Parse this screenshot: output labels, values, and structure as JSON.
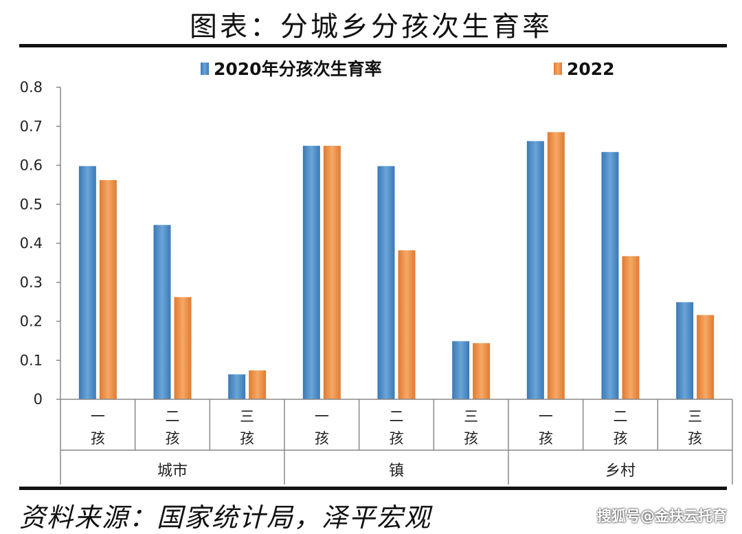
{
  "title": "图表：分城乡分孩次生育率",
  "source": "资料来源：国家统计局，泽平宏观",
  "watermark": "搜狐号@金扶云托育",
  "chart_data": {
    "type": "bar",
    "groups": [
      {
        "name": "城市",
        "categories": [
          "一孩",
          "二孩",
          "三孩"
        ]
      },
      {
        "name": "镇",
        "categories": [
          "一孩",
          "二孩",
          "三孩"
        ]
      },
      {
        "name": "乡村",
        "categories": [
          "一孩",
          "二孩",
          "三孩"
        ]
      }
    ],
    "series": [
      {
        "name": "2020年分孩次生育率",
        "color": "#4f8fc8",
        "values": [
          0.598,
          0.447,
          0.064,
          0.65,
          0.598,
          0.149,
          0.662,
          0.634,
          0.249
        ]
      },
      {
        "name": "2022",
        "color": "#f0954a",
        "values": [
          0.562,
          0.262,
          0.074,
          0.65,
          0.382,
          0.144,
          0.685,
          0.367,
          0.216
        ]
      }
    ],
    "yticks": [
      "0",
      "0.1",
      "0.2",
      "0.3",
      "0.4",
      "0.5",
      "0.6",
      "0.7",
      "0.8"
    ],
    "ylim": [
      0,
      0.8
    ],
    "legend": "top"
  }
}
